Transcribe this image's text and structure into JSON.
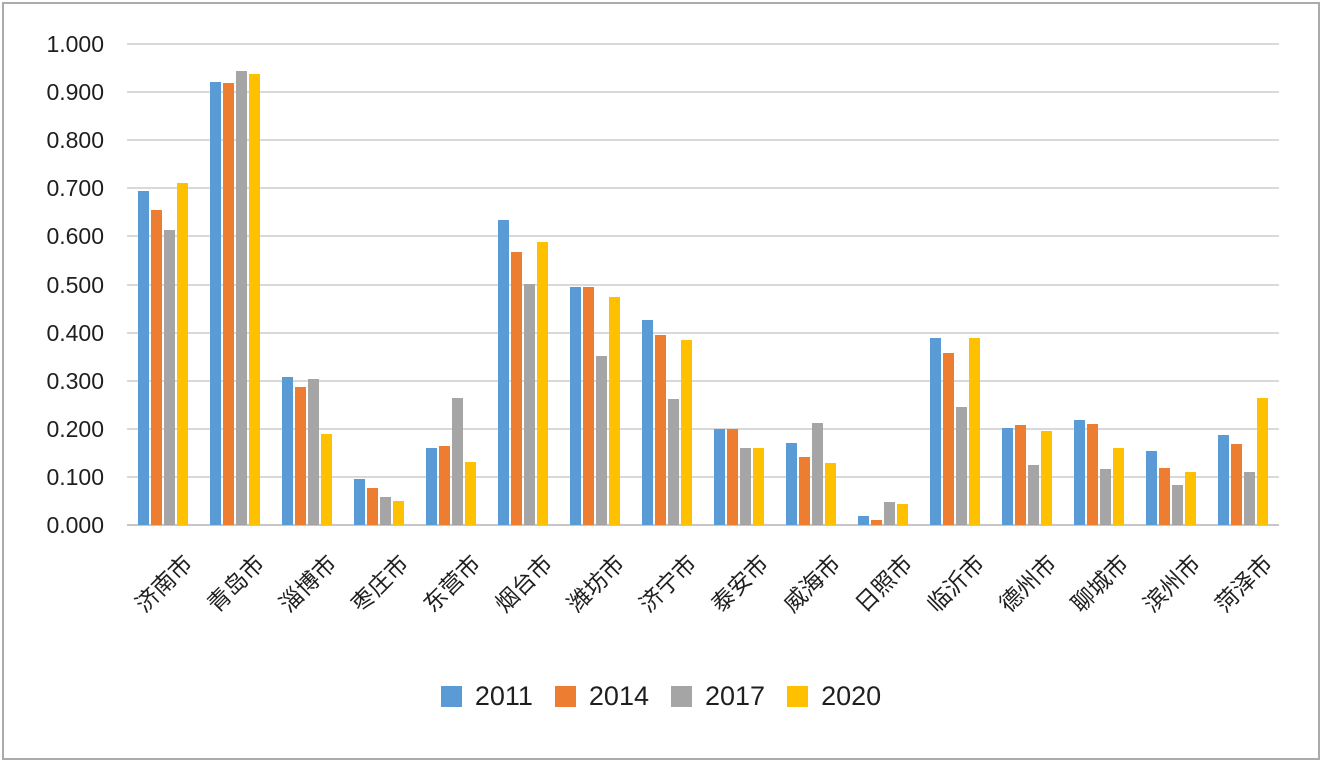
{
  "chart_data": {
    "type": "bar",
    "title": "",
    "xlabel": "",
    "ylabel": "",
    "categories": [
      "济南市",
      "青岛市",
      "淄博市",
      "枣庄市",
      "东营市",
      "烟台市",
      "潍坊市",
      "济宁市",
      "泰安市",
      "威海市",
      "日照市",
      "临沂市",
      "德州市",
      "聊城市",
      "滨州市",
      "菏泽市"
    ],
    "series": [
      {
        "name": "2011",
        "color": "#5B9BD5",
        "values": [
          0.695,
          0.922,
          0.308,
          0.095,
          0.16,
          0.635,
          0.495,
          0.427,
          0.2,
          0.17,
          0.018,
          0.388,
          0.202,
          0.218,
          0.153,
          0.187
        ]
      },
      {
        "name": "2014",
        "color": "#ED7D31",
        "values": [
          0.655,
          0.918,
          0.287,
          0.077,
          0.164,
          0.567,
          0.495,
          0.394,
          0.2,
          0.142,
          0.011,
          0.358,
          0.207,
          0.21,
          0.118,
          0.168
        ]
      },
      {
        "name": "2017",
        "color": "#A5A5A5",
        "values": [
          0.613,
          0.943,
          0.303,
          0.058,
          0.263,
          0.502,
          0.352,
          0.261,
          0.16,
          0.213,
          0.048,
          0.245,
          0.124,
          0.117,
          0.084,
          0.11
        ]
      },
      {
        "name": "2020",
        "color": "#FFC000",
        "values": [
          0.71,
          0.937,
          0.19,
          0.05,
          0.132,
          0.588,
          0.473,
          0.384,
          0.16,
          0.129,
          0.044,
          0.388,
          0.195,
          0.16,
          0.11,
          0.263
        ]
      }
    ],
    "ylim": [
      0,
      1
    ],
    "ytick_labels": [
      "0.000",
      "0.100",
      "0.200",
      "0.300",
      "0.400",
      "0.500",
      "0.600",
      "0.700",
      "0.800",
      "0.900",
      "1.000"
    ],
    "grid": true,
    "legend_position": "bottom",
    "gridline_color": "#D9D9D9",
    "axis_line_color": "#C6C6C6",
    "text_color": "#1f1f1f"
  }
}
